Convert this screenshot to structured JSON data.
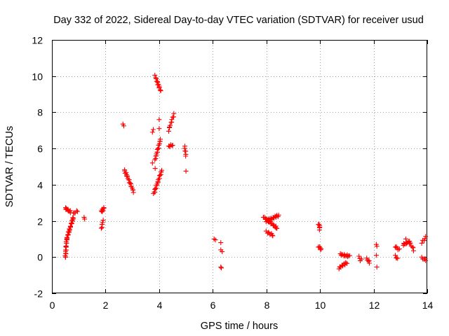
{
  "chart_data": {
    "type": "scatter",
    "title": "Day 332 of 2022, Sidereal Day-to-day VTEC variation (SDTVAR) for receiver usud",
    "xlabel": "GPS time / hours",
    "ylabel": "SDTVAR / TECUs",
    "xlim": [
      0,
      14
    ],
    "ylim": [
      -2,
      12
    ],
    "xticks": [
      "0",
      "2",
      "4",
      "6",
      "8",
      "10",
      "12",
      "14"
    ],
    "yticks": [
      "-2",
      "0",
      "2",
      "4",
      "6",
      "8",
      "10",
      "12"
    ],
    "grid": true,
    "marker": "+",
    "color": "#ff0000",
    "segments": [
      {
        "x0": 0.5,
        "y0": -0.05,
        "x1": 0.55,
        "y1": 1.0,
        "n": 16
      },
      {
        "x0": 0.55,
        "y0": 1.0,
        "x1": 0.8,
        "y1": 2.2,
        "n": 22
      },
      {
        "x0": 0.5,
        "y0": 2.7,
        "x1": 0.7,
        "y1": 2.5,
        "n": 10
      },
      {
        "x0": 0.8,
        "y0": 2.4,
        "x1": 0.95,
        "y1": 2.55,
        "n": 5
      },
      {
        "x0": 1.85,
        "y0": 1.6,
        "x1": 1.9,
        "y1": 2.0,
        "n": 6
      },
      {
        "x0": 1.85,
        "y0": 2.5,
        "x1": 1.95,
        "y1": 2.75,
        "n": 8
      },
      {
        "x0": 2.7,
        "y0": 4.8,
        "x1": 2.8,
        "y1": 4.5,
        "n": 6
      },
      {
        "x0": 2.8,
        "y0": 4.5,
        "x1": 3.05,
        "y1": 3.6,
        "n": 14
      },
      {
        "x0": 3.8,
        "y0": 3.5,
        "x1": 4.1,
        "y1": 4.8,
        "n": 20
      },
      {
        "x0": 3.85,
        "y0": 5.4,
        "x1": 4.05,
        "y1": 6.5,
        "n": 16
      },
      {
        "x0": 3.85,
        "y0": 10.0,
        "x1": 4.05,
        "y1": 9.2,
        "n": 14
      },
      {
        "x0": 4.35,
        "y0": 7.0,
        "x1": 4.55,
        "y1": 7.9,
        "n": 10
      },
      {
        "x0": 4.35,
        "y0": 6.1,
        "x1": 4.5,
        "y1": 6.2,
        "n": 6
      },
      {
        "x0": 4.95,
        "y0": 6.1,
        "x1": 5.0,
        "y1": 5.6,
        "n": 6
      },
      {
        "x0": 7.9,
        "y0": 2.2,
        "x1": 8.4,
        "y1": 1.6,
        "n": 20
      },
      {
        "x0": 8.0,
        "y0": 1.4,
        "x1": 8.25,
        "y1": 1.2,
        "n": 8
      },
      {
        "x0": 8.0,
        "y0": 2.0,
        "x1": 8.45,
        "y1": 2.3,
        "n": 18
      },
      {
        "x0": 9.95,
        "y0": 1.85,
        "x1": 10.0,
        "y1": 1.6,
        "n": 5
      },
      {
        "x0": 9.95,
        "y0": 0.6,
        "x1": 10.05,
        "y1": 0.4,
        "n": 5
      },
      {
        "x0": 10.7,
        "y0": -0.6,
        "x1": 11.0,
        "y1": -0.3,
        "n": 12
      },
      {
        "x0": 10.75,
        "y0": 0.15,
        "x1": 11.1,
        "y1": 0.05,
        "n": 12
      },
      {
        "x0": 11.45,
        "y0": 0.0,
        "x1": 11.55,
        "y1": -0.1,
        "n": 3
      },
      {
        "x0": 11.75,
        "y0": -0.1,
        "x1": 11.85,
        "y1": -0.3,
        "n": 5
      },
      {
        "x0": 12.8,
        "y0": 0.6,
        "x1": 12.95,
        "y1": 0.4,
        "n": 5
      },
      {
        "x0": 12.8,
        "y0": 0.05,
        "x1": 12.9,
        "y1": -0.1,
        "n": 4
      },
      {
        "x0": 13.1,
        "y0": 0.7,
        "x1": 13.35,
        "y1": 0.85,
        "n": 10
      },
      {
        "x0": 13.35,
        "y0": 0.8,
        "x1": 13.5,
        "y1": 0.4,
        "n": 6
      },
      {
        "x0": 13.8,
        "y0": 0.8,
        "x1": 13.95,
        "y1": 1.1,
        "n": 5
      },
      {
        "x0": 13.8,
        "y0": -0.05,
        "x1": 13.95,
        "y1": -0.15,
        "n": 5
      }
    ],
    "points": [
      [
        1.2,
        2.2
      ],
      [
        1.22,
        2.1
      ],
      [
        2.65,
        7.35
      ],
      [
        2.68,
        7.25
      ],
      [
        3.75,
        6.9
      ],
      [
        3.78,
        7.05
      ],
      [
        3.75,
        5.2
      ],
      [
        3.85,
        4.9
      ],
      [
        4.0,
        7.6
      ],
      [
        4.0,
        7.1
      ],
      [
        5.0,
        4.75
      ],
      [
        6.05,
        1.0
      ],
      [
        6.1,
        0.95
      ],
      [
        6.3,
        0.8
      ],
      [
        6.3,
        0.4
      ],
      [
        6.35,
        0.3
      ],
      [
        6.3,
        -0.55
      ],
      [
        6.32,
        -0.6
      ],
      [
        9.98,
        1.5
      ],
      [
        11.5,
        -0.2
      ],
      [
        12.1,
        0.7
      ],
      [
        12.12,
        0.6
      ],
      [
        12.1,
        0.1
      ],
      [
        12.12,
        -0.55
      ],
      [
        13.2,
        1.0
      ]
    ]
  }
}
